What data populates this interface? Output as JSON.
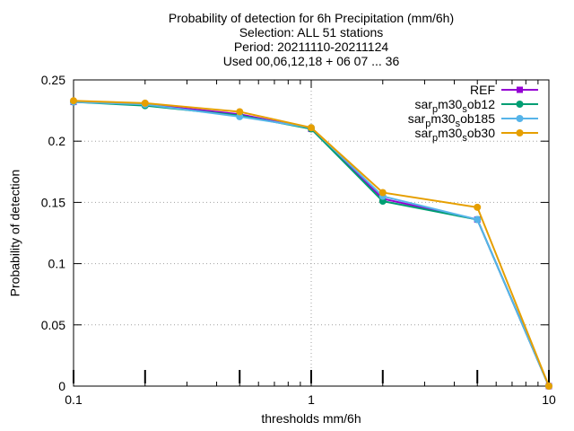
{
  "chart_data": {
    "type": "line",
    "title_lines": [
      "Probability of detection  for 6h Precipitation (mm/6h)",
      "Selection: ALL      51 stations",
      "Period: 20211110-20211124",
      "Used 00,06,12,18 + 06 07 ... 36"
    ],
    "xlabel": "thresholds mm/6h",
    "ylabel": "Probability of detection",
    "x_scale": "log",
    "xlim": [
      0.1,
      10
    ],
    "ylim": [
      0,
      0.25
    ],
    "x_ticks": [
      0.1,
      1,
      10
    ],
    "x_tick_labels": [
      "0.1",
      "1",
      "10"
    ],
    "y_ticks": [
      0,
      0.05,
      0.1,
      0.15,
      0.2,
      0.25
    ],
    "y_tick_labels": [
      "0",
      "0.05",
      "0.1",
      "0.15",
      "0.2",
      "0.25"
    ],
    "grid": true,
    "legend_position": "top-right",
    "x": [
      0.1,
      0.2,
      0.5,
      1,
      2,
      5,
      10
    ],
    "series": [
      {
        "name": "REF",
        "legend_main": "REF",
        "legend_sub": "",
        "legend_tail": "",
        "color": "#9400d3",
        "marker": "square",
        "values": [
          0.232,
          0.23,
          0.222,
          0.21,
          0.153,
          0.136,
          0.0
        ]
      },
      {
        "name": "sar_pm30_sob12",
        "legend_main": "sar",
        "legend_sub": "p",
        "legend_tail": "m30",
        "legend_sub2": "s",
        "legend_tail2": "ob12",
        "color": "#009e73",
        "marker": "circle",
        "values": [
          0.232,
          0.229,
          0.221,
          0.21,
          0.151,
          0.136,
          0.0
        ]
      },
      {
        "name": "sar_pm30_sob185",
        "legend_main": "sar",
        "legend_sub": "p",
        "legend_tail": "m30",
        "legend_sub2": "s",
        "legend_tail2": "ob185",
        "color": "#56b4e9",
        "marker": "circle",
        "values": [
          0.232,
          0.23,
          0.22,
          0.211,
          0.155,
          0.136,
          0.0
        ]
      },
      {
        "name": "sar_pm30_sob30",
        "legend_main": "sar",
        "legend_sub": "p",
        "legend_tail": "m30",
        "legend_sub2": "s",
        "legend_tail2": "ob30",
        "color": "#e69f00",
        "marker": "circle",
        "values": [
          0.233,
          0.231,
          0.224,
          0.211,
          0.158,
          0.146,
          0.0
        ]
      }
    ]
  }
}
